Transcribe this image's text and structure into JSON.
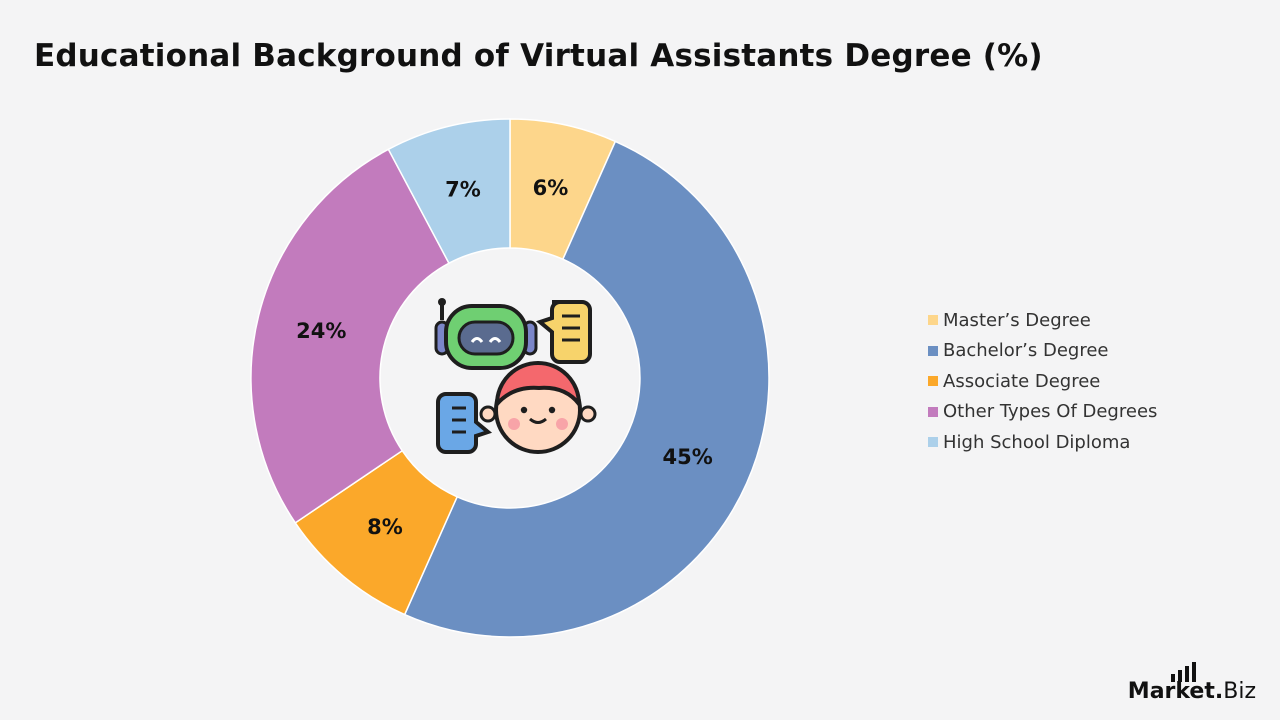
{
  "title": "Educational Background of Virtual Assistants Degree (%)",
  "chart_data": {
    "type": "pie",
    "variant": "donut",
    "title": "Educational Background of Virtual Assistants Degree (%)",
    "categories": [
      "Master’s Degree",
      "Bachelor’s Degree",
      "Associate Degree",
      "Other Types Of Degrees",
      "High School Diploma"
    ],
    "values": [
      6,
      45,
      8,
      24,
      7
    ],
    "labels": [
      "6%",
      "45%",
      "8%",
      "24%",
      "7%"
    ],
    "colors": [
      "#fdd68b",
      "#6b8fc2",
      "#fba82a",
      "#c27bbd",
      "#acd0ea"
    ],
    "legend_position": "right",
    "center_icon": "robot-and-person-chat-icon"
  },
  "brand": {
    "bold": "Market",
    "dot": ".",
    "light": "Biz",
    "icon": "bar-signal-icon"
  }
}
